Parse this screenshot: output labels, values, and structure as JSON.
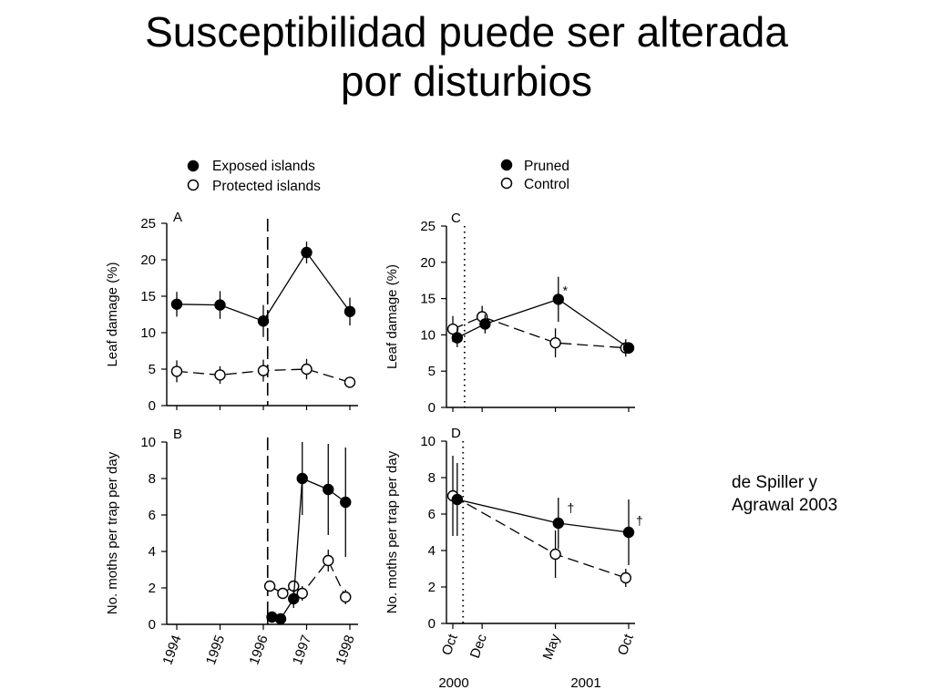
{
  "title": {
    "line1": "Susceptibilidad puede ser alterada",
    "line2": "por disturbios"
  },
  "citation": {
    "line1": "de Spiller y",
    "line2": "Agrawal 2003"
  },
  "legend_left": {
    "filled": "Exposed islands",
    "open": "Protected islands"
  },
  "legend_right": {
    "filled": "Pruned",
    "open": "Control"
  },
  "chart_data": [
    {
      "panel": "A",
      "type": "line",
      "ylabel": "Leaf damage (%)",
      "xlim": [
        1994,
        1998.2
      ],
      "ylim": [
        0,
        25
      ],
      "yticks": [
        0,
        5,
        10,
        15,
        20,
        25
      ],
      "vline": 1996.1,
      "series": [
        {
          "name": "Exposed islands",
          "marker": "filled",
          "x": [
            1994,
            1995,
            1996,
            1997,
            1998
          ],
          "y": [
            13.9,
            13.8,
            11.6,
            21.0,
            12.9
          ],
          "err": [
            1.7,
            1.9,
            2.2,
            1.5,
            1.9
          ]
        },
        {
          "name": "Protected islands",
          "marker": "open",
          "x": [
            1994,
            1995,
            1996,
            1997,
            1998
          ],
          "y": [
            4.7,
            4.2,
            4.8,
            5.0,
            3.2
          ],
          "err": [
            1.5,
            1.2,
            1.5,
            1.4,
            0.6
          ]
        }
      ]
    },
    {
      "panel": "B",
      "type": "line",
      "ylabel": "No. moths per trap per day",
      "xlim": [
        1994,
        1998.2
      ],
      "ylim": [
        0,
        10
      ],
      "yticks": [
        0,
        2,
        4,
        6,
        8,
        10
      ],
      "xticks": [
        "1994",
        "1995",
        "1996",
        "1997",
        "1998"
      ],
      "vline": 1996.1,
      "series": [
        {
          "name": "Exposed islands",
          "marker": "filled",
          "x": [
            1996.2,
            1996.4,
            1996.7,
            1996.9,
            1997.5,
            1997.9
          ],
          "y": [
            0.4,
            0.3,
            1.4,
            8.0,
            7.4,
            6.7
          ],
          "err": [
            0,
            0,
            0.5,
            2.0,
            2.5,
            3.0
          ]
        },
        {
          "name": "Protected islands",
          "marker": "open",
          "x": [
            1996.15,
            1996.45,
            1996.7,
            1996.9,
            1997.5,
            1997.9
          ],
          "y": [
            2.1,
            1.7,
            2.1,
            1.7,
            3.5,
            1.5
          ],
          "err": [
            0.3,
            0.2,
            0.3,
            0.4,
            0.6,
            0.4
          ]
        }
      ]
    },
    {
      "panel": "C",
      "type": "line",
      "ylabel": "Leaf damage (%)",
      "xlim": [
        0,
        12.2
      ],
      "ylim": [
        0,
        25
      ],
      "yticks": [
        0,
        5,
        10,
        15,
        20,
        25
      ],
      "vline": 0.8,
      "annotations": [
        {
          "text": "*",
          "x": 7.5,
          "y": 15.5
        }
      ],
      "series": [
        {
          "name": "Pruned",
          "marker": "filled",
          "x": [
            0.3,
            2.2,
            7.2,
            12.0
          ],
          "y": [
            9.6,
            11.5,
            14.9,
            8.2
          ],
          "err": [
            1.3,
            1.3,
            3.1,
            0.8
          ]
        },
        {
          "name": "Control",
          "marker": "open",
          "x": [
            0.0,
            2.0,
            7.0,
            11.8
          ],
          "y": [
            10.8,
            12.5,
            8.9,
            8.2
          ],
          "err": [
            1.8,
            1.5,
            2.0,
            1.2
          ]
        }
      ]
    },
    {
      "panel": "D",
      "type": "line",
      "ylabel": "No. moths per trap per day",
      "xlim": [
        0,
        12.2
      ],
      "ylim": [
        0,
        10
      ],
      "yticks": [
        0,
        2,
        4,
        6,
        8,
        10
      ],
      "vline": 0.7,
      "xticks": [
        "Oct",
        "Dec",
        "May",
        "Oct"
      ],
      "xtick_positions": [
        0,
        2,
        7,
        12
      ],
      "year_labels": [
        "2000",
        "2001"
      ],
      "annotations": [
        {
          "text": "†",
          "x": 7.8,
          "y": 6.1
        },
        {
          "text": "†",
          "x": 12.5,
          "y": 5.4
        }
      ],
      "series": [
        {
          "name": "Pruned",
          "marker": "filled",
          "x": [
            0.3,
            7.2,
            12.0
          ],
          "y": [
            6.8,
            5.5,
            5.0
          ],
          "err": [
            2.0,
            1.4,
            1.8
          ]
        },
        {
          "name": "Control",
          "marker": "open",
          "x": [
            0.0,
            7.0,
            11.8
          ],
          "y": [
            7.0,
            3.8,
            2.5
          ],
          "err": [
            2.2,
            1.3,
            0.5
          ]
        }
      ]
    }
  ]
}
